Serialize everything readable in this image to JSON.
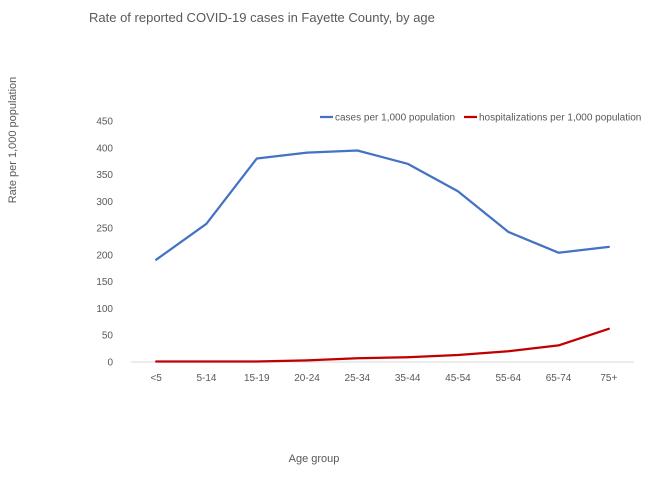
{
  "chart_data": {
    "type": "line",
    "title": "Rate of reported COVID-19 cases in Fayette County, by age",
    "xlabel": "Age group",
    "ylabel": "Rate per 1,000 population",
    "categories": [
      "<5",
      "5-14",
      "15-19",
      "20-24",
      "25-34",
      "35-44",
      "45-54",
      "55-64",
      "65-74",
      "75+"
    ],
    "ylim": [
      0,
      450
    ],
    "yticks": [
      0,
      50,
      100,
      150,
      200,
      250,
      300,
      350,
      400,
      450
    ],
    "grid": false,
    "legend_position": "top-right",
    "series": [
      {
        "name": "cases per 1,000 population",
        "color": "#4472c4",
        "values": [
          191,
          258,
          380,
          391,
          395,
          370,
          319,
          243,
          204,
          215
        ]
      },
      {
        "name": "hospitalizations per 1,000 population",
        "color": "#c00000",
        "values": [
          1,
          1,
          1,
          3,
          7,
          9,
          13,
          20,
          31,
          62
        ]
      }
    ]
  }
}
